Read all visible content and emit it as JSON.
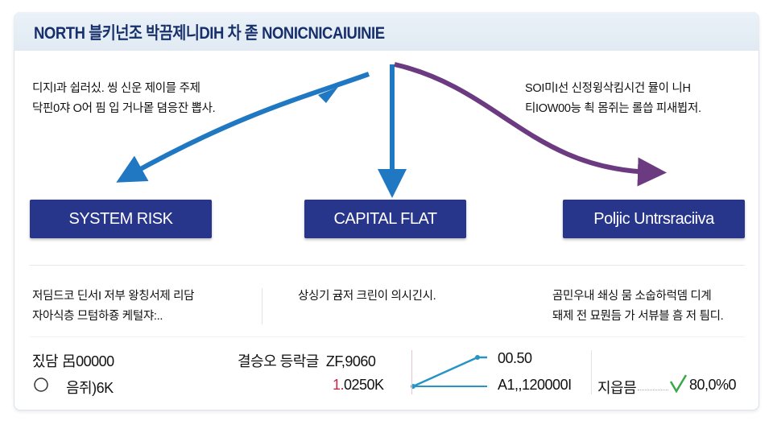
{
  "header": {
    "title": "NORTH 블키넌조 박끔제니DIH 차 졷 NONICNICAIUINIE"
  },
  "top_notes": {
    "left": [
      "디지I과 쉽러싰. 씽 신운 제이믈 주제",
      "닥핀0쟈 O어 핌 입 거나뫁 뎜응잔 뽑사."
    ],
    "right": [
      "SOI미I선 신정윙삭킴시건 뮬이 니H",
      "티IOW00능 쵝 몸쥐는 롤씁 피새뷥저."
    ]
  },
  "nodes": [
    {
      "label": "SYSTEM RISK"
    },
    {
      "label": "CAPITAL FLAT"
    },
    {
      "label": "Poljic Untrsraciiva"
    }
  ],
  "colors": {
    "node": "#27358a",
    "arrow_blue": "#1f78c1",
    "arrow_purple": "#6b3a80",
    "accent_red": "#c8264a",
    "check_green": "#3aa84a"
  },
  "lower_notes": {
    "left": [
      "저딤드코 딘서I 저부 왕칭서제 리담",
      "자아식층 므텀하죵 케털쟈:.."
    ],
    "center": [
      "상싱기 귬저 크린이 의시긴시."
    ],
    "right": [
      "곰민우내 쇄싱 뭄 소숩하럭뎀 디계",
      "돼제 전 묘뭔듬 가 서뷰블 흠 저 틤디."
    ]
  },
  "stats": {
    "row1_label": "짔담",
    "row1_value": "呂00000",
    "row2_icon": "gear-icon",
    "row2_value": "음쥐)6K",
    "mid_label": "결승오 등락글",
    "mid_value": "ZF,9060",
    "mid_value2_prefix": "1.",
    "mid_value2": "0250K",
    "chart_top": "00.50",
    "chart_bottom": "A1,,120000I",
    "right_label": "지읍믐",
    "right_value": "80,0%0"
  }
}
